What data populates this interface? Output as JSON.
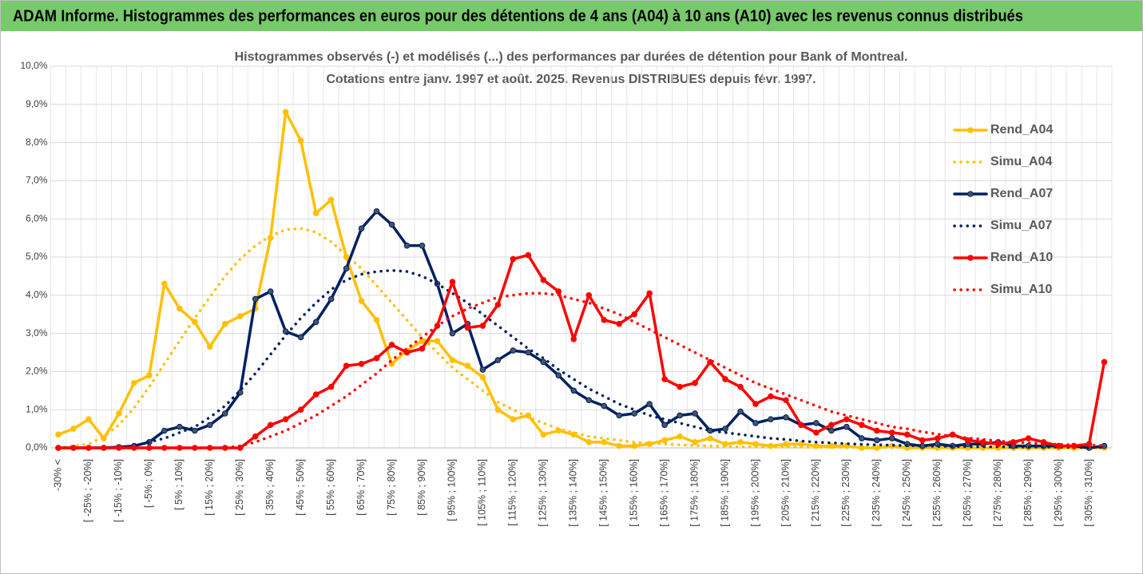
{
  "header": {
    "title": "ADAM Informe. Histogrammes des performances en euros pour des détentions de 4 ans (A04) à 10 ans (A10) avec les revenus connus distribués"
  },
  "chart_data": {
    "type": "line",
    "title": "Histogrammes observés (-) et modélisés (...) des performances par durées de détention pour Bank of Montreal.",
    "subtitle": "Cotations entre janv. 1997 et août. 2025. Revenus DISTRIBUES depuis févr. 1997.",
    "categories": [
      "-30% <",
      null,
      "[ -25% ; -20%]",
      null,
      "[ -15% ; -10%]",
      null,
      "[ -5% ; 0%]",
      null,
      "[ 5% ; 10%]",
      null,
      "[ 15% ; 20%]",
      null,
      "[ 25% ; 30%]",
      null,
      "[ 35% ; 40%]",
      null,
      "[ 45% ; 50%]",
      null,
      "[ 55% ; 60%]",
      null,
      "[ 65% ; 70%]",
      null,
      "[ 75% ; 80%]",
      null,
      "[ 85% ; 90%]",
      null,
      "[ 95% ; 100%]",
      null,
      "[ 105% ; 110%]",
      null,
      "[ 115% ; 120%]",
      null,
      "[ 125% ; 130%]",
      null,
      "[ 135% ; 140%]",
      null,
      "[ 145% ; 150%]",
      null,
      "[ 155% ; 160%]",
      null,
      "[ 165% ; 170%]",
      null,
      "[ 175% ; 180%]",
      null,
      "[ 185% ; 190%]",
      null,
      "[ 195% ; 200%]",
      null,
      "[ 205% ; 210%]",
      null,
      "[ 215% ; 220%]",
      null,
      "[ 225% ; 230%]",
      null,
      "[ 235% ; 240%]",
      null,
      "[ 245% ; 250%]",
      null,
      "[ 255% ; 260%]",
      null,
      "[ 265% ; 270%]",
      null,
      "[ 275% ; 280%]",
      null,
      "[ 285% ; 290%]",
      null,
      "[ 295% ; 300%]",
      null,
      "[ 305% ; 310%]",
      null
    ],
    "series": [
      {
        "name": "Rend_A04",
        "color": "#FFC000",
        "style": "solid",
        "values": [
          0.35,
          0.5,
          0.75,
          0.25,
          0.9,
          1.7,
          1.9,
          4.3,
          3.65,
          3.3,
          2.65,
          3.25,
          3.45,
          3.65,
          5.5,
          8.8,
          8.05,
          6.15,
          6.5,
          5.0,
          3.85,
          3.35,
          2.2,
          2.55,
          2.8,
          2.8,
          2.3,
          2.15,
          1.85,
          1.0,
          0.75,
          0.85,
          0.35,
          0.45,
          0.35,
          0.15,
          0.15,
          0.05,
          0.05,
          0.1,
          0.2,
          0.3,
          0.15,
          0.25,
          0.1,
          0.15,
          0.1,
          0.05,
          0.1,
          0.1,
          0.05,
          0.05,
          0.05,
          0,
          0,
          0.05,
          0,
          0,
          0,
          0,
          0,
          0,
          0,
          0,
          0,
          0,
          0,
          0,
          0,
          0
        ]
      },
      {
        "name": "Simu_A04",
        "color": "#FFC000",
        "style": "dotted",
        "values": [
          0,
          0.05,
          0.1,
          0.3,
          0.6,
          1.05,
          1.6,
          2.2,
          2.8,
          3.4,
          3.95,
          4.5,
          4.95,
          5.3,
          5.55,
          5.72,
          5.75,
          5.65,
          5.4,
          5.05,
          4.7,
          4.25,
          3.8,
          3.35,
          2.9,
          2.5,
          2.1,
          1.8,
          1.5,
          1.2,
          1.0,
          0.8,
          0.65,
          0.5,
          0.4,
          0.3,
          0.25,
          0.2,
          0.15,
          0.12,
          0.1,
          0.08,
          0.06,
          0.05,
          0.04,
          0.03,
          0.03,
          0.02,
          0.02,
          0.02,
          0.01,
          0.01,
          0.01,
          0.01,
          0.01,
          0.01,
          0.01,
          0.01,
          0.01,
          0.01,
          0,
          0,
          0,
          0,
          0,
          0,
          0,
          0,
          0,
          0
        ]
      },
      {
        "name": "Rend_A07",
        "color": "#002060",
        "style": "solid",
        "values": [
          0,
          0,
          0,
          0,
          0.02,
          0.05,
          0.15,
          0.45,
          0.55,
          0.45,
          0.6,
          0.9,
          1.45,
          3.9,
          4.1,
          3.05,
          2.9,
          3.3,
          3.9,
          4.7,
          5.75,
          6.2,
          5.85,
          5.3,
          5.3,
          4.3,
          3.0,
          3.25,
          2.05,
          2.3,
          2.55,
          2.5,
          2.25,
          1.9,
          1.5,
          1.25,
          1.1,
          0.85,
          0.9,
          1.15,
          0.6,
          0.85,
          0.9,
          0.45,
          0.5,
          0.95,
          0.65,
          0.75,
          0.8,
          0.6,
          0.65,
          0.45,
          0.55,
          0.25,
          0.2,
          0.25,
          0.1,
          0.05,
          0.1,
          0.05,
          0.1,
          0.1,
          0.15,
          0.05,
          0.05,
          0.05,
          0.05,
          0.05,
          0,
          0.05
        ]
      },
      {
        "name": "Simu_A07",
        "color": "#002060",
        "style": "dotted",
        "values": [
          0,
          0,
          0,
          0,
          0.02,
          0.05,
          0.15,
          0.25,
          0.4,
          0.55,
          0.8,
          1.1,
          1.5,
          1.95,
          2.45,
          2.95,
          3.4,
          3.8,
          4.15,
          4.4,
          4.55,
          4.62,
          4.65,
          4.62,
          4.5,
          4.3,
          4.05,
          3.8,
          3.5,
          3.2,
          2.9,
          2.6,
          2.35,
          2.05,
          1.8,
          1.55,
          1.35,
          1.15,
          1.0,
          0.85,
          0.75,
          0.65,
          0.55,
          0.45,
          0.4,
          0.35,
          0.3,
          0.25,
          0.22,
          0.18,
          0.15,
          0.13,
          0.11,
          0.09,
          0.08,
          0.07,
          0.06,
          0.05,
          0.04,
          0.04,
          0.03,
          0.03,
          0.03,
          0.02,
          0.02,
          0.02,
          0.02,
          0.01,
          0.01,
          0.01
        ]
      },
      {
        "name": "Rend_A10",
        "color": "#FF0000",
        "style": "solid",
        "values": [
          0,
          0,
          0,
          0,
          0,
          0,
          0,
          0,
          0,
          0,
          0,
          0,
          0,
          0.3,
          0.6,
          0.75,
          1.0,
          1.4,
          1.6,
          2.15,
          2.2,
          2.35,
          2.7,
          2.5,
          2.6,
          3.2,
          4.35,
          3.15,
          3.2,
          3.75,
          4.95,
          5.05,
          4.4,
          4.1,
          2.85,
          4.0,
          3.35,
          3.25,
          3.5,
          4.05,
          1.8,
          1.6,
          1.7,
          2.25,
          1.8,
          1.6,
          1.15,
          1.35,
          1.25,
          0.6,
          0.4,
          0.6,
          0.75,
          0.6,
          0.45,
          0.4,
          0.35,
          0.2,
          0.25,
          0.35,
          0.2,
          0.15,
          0.1,
          0.15,
          0.25,
          0.15,
          0.05,
          0.05,
          0.1,
          2.25
        ]
      },
      {
        "name": "Simu_A10",
        "color": "#FF0000",
        "style": "dotted",
        "values": [
          0,
          0,
          0,
          0,
          0,
          0,
          0,
          0,
          0,
          0,
          0,
          0,
          0.05,
          0.15,
          0.3,
          0.45,
          0.65,
          0.85,
          1.1,
          1.35,
          1.65,
          1.95,
          2.3,
          2.6,
          2.9,
          3.2,
          3.45,
          3.65,
          3.8,
          3.95,
          4.0,
          4.05,
          4.05,
          4.0,
          3.9,
          3.8,
          3.65,
          3.5,
          3.3,
          3.1,
          2.9,
          2.7,
          2.5,
          2.3,
          2.1,
          1.9,
          1.7,
          1.55,
          1.4,
          1.25,
          1.1,
          0.95,
          0.85,
          0.75,
          0.65,
          0.55,
          0.5,
          0.42,
          0.36,
          0.3,
          0.26,
          0.22,
          0.18,
          0.15,
          0.13,
          0.11,
          0.09,
          0.08,
          0.07,
          0.06
        ]
      }
    ],
    "ylim": [
      0,
      10
    ],
    "yticks": [
      {
        "value": 0,
        "label": "0,0%"
      },
      {
        "value": 1,
        "label": "1,0%"
      },
      {
        "value": 2,
        "label": "2,0%"
      },
      {
        "value": 3,
        "label": "3,0%"
      },
      {
        "value": 4,
        "label": "4,0%"
      },
      {
        "value": 5,
        "label": "5,0%"
      },
      {
        "value": 6,
        "label": "6,0%"
      },
      {
        "value": 7,
        "label": "7,0%"
      },
      {
        "value": 8,
        "label": "8,0%"
      },
      {
        "value": 9,
        "label": "9,0%"
      },
      {
        "value": 10,
        "label": "10,0%"
      }
    ],
    "grid": true,
    "legend": "right"
  }
}
